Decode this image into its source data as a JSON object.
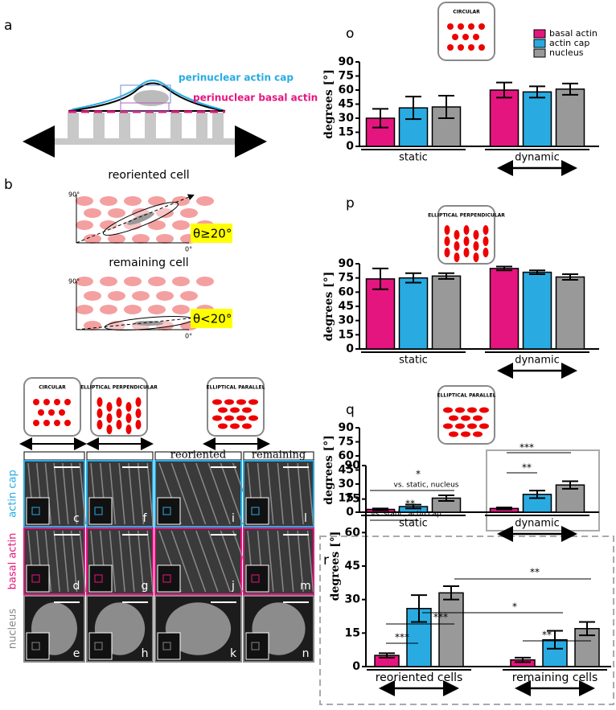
{
  "figure": {
    "panel_a": {
      "label": "a",
      "cap": "perinuclear actin cap",
      "basal": "perinuclear basal actin"
    },
    "panel_b": {
      "label": "b",
      "cells": [
        {
          "title": "reoriented cell",
          "angle": "θ≥20°",
          "top": "90°",
          "bottom": "0°"
        },
        {
          "title": "remaining cell",
          "angle": "θ<20°",
          "top": "90°",
          "bottom": "0°"
        }
      ]
    },
    "grid": {
      "patterns": [
        "CIRCULAR",
        "ELLIPTICAL PERPENDICULAR",
        "ELLIPTICAL PARALLEL"
      ],
      "subheaders": [
        "reoriented",
        "remaining"
      ],
      "rows": [
        "actin cap",
        "basal actin",
        "nucleus"
      ],
      "letters": [
        [
          "c",
          "f",
          "i",
          "l"
        ],
        [
          "d",
          "g",
          "j",
          "m"
        ],
        [
          "e",
          "h",
          "k",
          "n"
        ]
      ]
    }
  },
  "chart_data": [
    {
      "type": "bar",
      "label": "o",
      "inset_label": "CIRCULAR",
      "ylabel": "degrees [°]",
      "categories": [
        "static",
        "dynamic"
      ],
      "ylim": [
        0,
        90
      ],
      "yticks": [
        0,
        15,
        30,
        45,
        60,
        75,
        90
      ],
      "legend": "top-right",
      "series": [
        {
          "name": "basal actin",
          "color": "#e5157f",
          "values": [
            30,
            60
          ],
          "errors": [
            10,
            8
          ]
        },
        {
          "name": "actin cap",
          "color": "#29abe2",
          "values": [
            41,
            58
          ],
          "errors": [
            12,
            6
          ]
        },
        {
          "name": "nucleus",
          "color": "#999999",
          "values": [
            42,
            61
          ],
          "errors": [
            12,
            6
          ]
        }
      ]
    },
    {
      "type": "bar",
      "label": "p",
      "inset_label": "ELLIPTICAL PERPENDICULAR",
      "ylabel": "degrees [°]",
      "categories": [
        "static",
        "dynamic"
      ],
      "ylim": [
        0,
        90
      ],
      "yticks": [
        0,
        15,
        30,
        45,
        60,
        75,
        90
      ],
      "series": [
        {
          "color": "#e5157f",
          "values": [
            74,
            85
          ],
          "errors": [
            11,
            2
          ]
        },
        {
          "color": "#29abe2",
          "values": [
            75,
            81
          ],
          "errors": [
            5,
            2
          ]
        },
        {
          "color": "#999999",
          "values": [
            77,
            76
          ],
          "errors": [
            3,
            3
          ]
        }
      ]
    },
    {
      "type": "bar",
      "label": "q",
      "inset_label": "ELLIPTICAL PARALLEL",
      "ylabel": "degrees [°]",
      "categories": [
        "static",
        "dynamic"
      ],
      "ylim": [
        0,
        90
      ],
      "yticks": [
        0,
        15,
        30,
        45,
        60,
        75,
        90
      ],
      "annotations": [
        "***",
        "**"
      ],
      "series": [
        {
          "color": "#e5157f",
          "values": [
            3,
            4
          ],
          "errors": [
            1,
            1
          ]
        },
        {
          "color": "#29abe2",
          "values": [
            6,
            19
          ],
          "errors": [
            2,
            4
          ]
        },
        {
          "color": "#999999",
          "values": [
            15,
            29
          ],
          "errors": [
            3,
            4
          ]
        }
      ]
    },
    {
      "type": "bar",
      "label": "r",
      "ylabel": "degrees [°]",
      "categories": [
        "reoriented cells",
        "remaining cells"
      ],
      "ylim": [
        0,
        90
      ],
      "yticks": [
        0,
        15,
        30,
        45,
        60,
        75,
        90
      ],
      "annotations": [
        "*",
        "vs. static, nucleus",
        "**",
        "vs. static, actin cap",
        "**",
        "*",
        "***",
        "***",
        "**"
      ],
      "series": [
        {
          "color": "#e5157f",
          "values": [
            5,
            3
          ],
          "errors": [
            1,
            1
          ]
        },
        {
          "color": "#29abe2",
          "values": [
            26,
            12
          ],
          "errors": [
            6,
            4
          ]
        },
        {
          "color": "#999999",
          "values": [
            33,
            17
          ],
          "errors": [
            3,
            3
          ]
        }
      ]
    }
  ]
}
